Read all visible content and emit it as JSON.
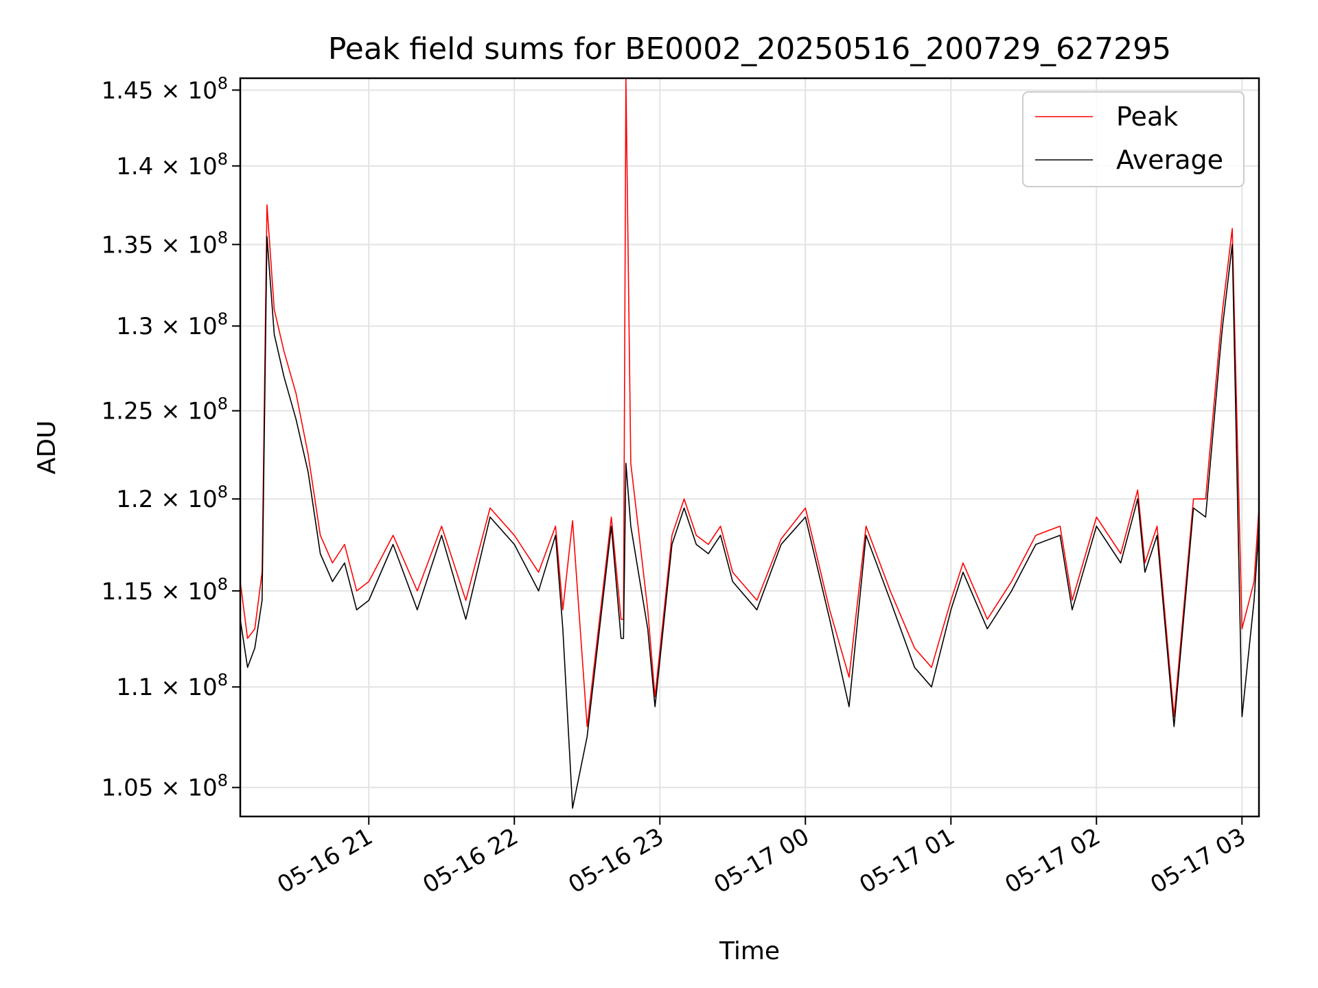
{
  "chart_data": {
    "type": "line",
    "title": "Peak field sums for BE0002_20250516_200729_627295",
    "xlabel": "Time",
    "ylabel": "ADU",
    "yscale": "log",
    "ylim": [
      103600000,
      145800000
    ],
    "xlim": [
      "2025-05-16 20:07",
      "2025-05-17 03:07"
    ],
    "grid": true,
    "legend_position": "top-right",
    "x_ticks": [
      "05-16 21",
      "05-16 22",
      "05-16 23",
      "05-17 00",
      "05-17 01",
      "05-17 02",
      "05-17 03"
    ],
    "x_tick_times": [
      "2025-05-16 21:00",
      "2025-05-16 22:00",
      "2025-05-16 23:00",
      "2025-05-17 00:00",
      "2025-05-17 01:00",
      "2025-05-17 02:00",
      "2025-05-17 03:00"
    ],
    "y_ticks": [
      {
        "value": 105000000,
        "mantissa": "1.05",
        "exponent": "8"
      },
      {
        "value": 110000000,
        "mantissa": "1.1",
        "exponent": "8"
      },
      {
        "value": 115000000,
        "mantissa": "1.15",
        "exponent": "8"
      },
      {
        "value": 120000000,
        "mantissa": "1.2",
        "exponent": "8"
      },
      {
        "value": 125000000,
        "mantissa": "1.25",
        "exponent": "8"
      },
      {
        "value": 130000000,
        "mantissa": "1.3",
        "exponent": "8"
      },
      {
        "value": 135000000,
        "mantissa": "1.35",
        "exponent": "8"
      },
      {
        "value": 140000000,
        "mantissa": "1.4",
        "exponent": "8"
      },
      {
        "value": 145000000,
        "mantissa": "1.45",
        "exponent": "8"
      }
    ],
    "series": [
      {
        "name": "Peak",
        "color": "#ff0000",
        "x": [
          "2025-05-16 20:07",
          "2025-05-16 20:10",
          "2025-05-16 20:13",
          "2025-05-16 20:16",
          "2025-05-16 20:18",
          "2025-05-16 20:21",
          "2025-05-16 20:25",
          "2025-05-16 20:30",
          "2025-05-16 20:35",
          "2025-05-16 20:40",
          "2025-05-16 20:45",
          "2025-05-16 20:50",
          "2025-05-16 20:55",
          "2025-05-16 21:00",
          "2025-05-16 21:10",
          "2025-05-16 21:20",
          "2025-05-16 21:30",
          "2025-05-16 21:40",
          "2025-05-16 21:50",
          "2025-05-16 22:00",
          "2025-05-16 22:10",
          "2025-05-16 22:17",
          "2025-05-16 22:20",
          "2025-05-16 22:24",
          "2025-05-16 22:30",
          "2025-05-16 22:40",
          "2025-05-16 22:44",
          "2025-05-16 22:45",
          "2025-05-16 22:46",
          "2025-05-16 22:48",
          "2025-05-16 22:55",
          "2025-05-16 22:58",
          "2025-05-16 23:05",
          "2025-05-16 23:10",
          "2025-05-16 23:15",
          "2025-05-16 23:20",
          "2025-05-16 23:25",
          "2025-05-16 23:30",
          "2025-05-16 23:40",
          "2025-05-16 23:50",
          "2025-05-17 00:00",
          "2025-05-17 00:10",
          "2025-05-17 00:18",
          "2025-05-17 00:25",
          "2025-05-17 00:35",
          "2025-05-17 00:45",
          "2025-05-17 00:52",
          "2025-05-17 01:00",
          "2025-05-17 01:05",
          "2025-05-17 01:15",
          "2025-05-17 01:25",
          "2025-05-17 01:35",
          "2025-05-17 01:45",
          "2025-05-17 01:50",
          "2025-05-17 02:00",
          "2025-05-17 02:10",
          "2025-05-17 02:17",
          "2025-05-17 02:20",
          "2025-05-17 02:25",
          "2025-05-17 02:32",
          "2025-05-17 02:40",
          "2025-05-17 02:45",
          "2025-05-17 02:51",
          "2025-05-17 02:52",
          "2025-05-17 02:56",
          "2025-05-17 03:00",
          "2025-05-17 03:05",
          "2025-05-17 03:07"
        ],
        "values": [
          115500000,
          112500000,
          113000000,
          116000000,
          137500000,
          131000000,
          128500000,
          126000000,
          122500000,
          118000000,
          116500000,
          117500000,
          115000000,
          115500000,
          118000000,
          115000000,
          118500000,
          114500000,
          119500000,
          118000000,
          116000000,
          118500000,
          114000000,
          118800000,
          108000000,
          119000000,
          113500000,
          113500000,
          145800000,
          122000000,
          114000000,
          109500000,
          118000000,
          120000000,
          118000000,
          117500000,
          118500000,
          116000000,
          114500000,
          117800000,
          119500000,
          114000000,
          110500000,
          118500000,
          115000000,
          112000000,
          111000000,
          114500000,
          116500000,
          113500000,
          115500000,
          118000000,
          118500000,
          114500000,
          119000000,
          117000000,
          120500000,
          116500000,
          118500000,
          108500000,
          120000000,
          120000000,
          129500000,
          131000000,
          136000000,
          113000000,
          115500000,
          119500000
        ]
      },
      {
        "name": "Average",
        "color": "#000000",
        "x": [
          "2025-05-16 20:07",
          "2025-05-16 20:10",
          "2025-05-16 20:13",
          "2025-05-16 20:16",
          "2025-05-16 20:18",
          "2025-05-16 20:21",
          "2025-05-16 20:25",
          "2025-05-16 20:30",
          "2025-05-16 20:35",
          "2025-05-16 20:40",
          "2025-05-16 20:45",
          "2025-05-16 20:50",
          "2025-05-16 20:55",
          "2025-05-16 21:00",
          "2025-05-16 21:10",
          "2025-05-16 21:20",
          "2025-05-16 21:30",
          "2025-05-16 21:40",
          "2025-05-16 21:50",
          "2025-05-16 22:00",
          "2025-05-16 22:10",
          "2025-05-16 22:17",
          "2025-05-16 22:20",
          "2025-05-16 22:24",
          "2025-05-16 22:30",
          "2025-05-16 22:40",
          "2025-05-16 22:44",
          "2025-05-16 22:45",
          "2025-05-16 22:46",
          "2025-05-16 22:48",
          "2025-05-16 22:55",
          "2025-05-16 22:58",
          "2025-05-16 23:05",
          "2025-05-16 23:10",
          "2025-05-16 23:15",
          "2025-05-16 23:20",
          "2025-05-16 23:25",
          "2025-05-16 23:30",
          "2025-05-16 23:40",
          "2025-05-16 23:50",
          "2025-05-17 00:00",
          "2025-05-17 00:10",
          "2025-05-17 00:18",
          "2025-05-17 00:25",
          "2025-05-17 00:35",
          "2025-05-17 00:45",
          "2025-05-17 00:52",
          "2025-05-17 01:00",
          "2025-05-17 01:05",
          "2025-05-17 01:15",
          "2025-05-17 01:25",
          "2025-05-17 01:35",
          "2025-05-17 01:45",
          "2025-05-17 01:50",
          "2025-05-17 02:00",
          "2025-05-17 02:10",
          "2025-05-17 02:17",
          "2025-05-17 02:20",
          "2025-05-17 02:25",
          "2025-05-17 02:32",
          "2025-05-17 02:40",
          "2025-05-17 02:45",
          "2025-05-17 02:51",
          "2025-05-17 02:52",
          "2025-05-17 02:56",
          "2025-05-17 03:00",
          "2025-05-17 03:05",
          "2025-05-17 03:07"
        ],
        "values": [
          113500000,
          111000000,
          112000000,
          114500000,
          135500000,
          129500000,
          127000000,
          124500000,
          121500000,
          117000000,
          115500000,
          116500000,
          114000000,
          114500000,
          117500000,
          114000000,
          118000000,
          113500000,
          119000000,
          117500000,
          115000000,
          118000000,
          113000000,
          104000000,
          107500000,
          118500000,
          112500000,
          112500000,
          122000000,
          118500000,
          113000000,
          109000000,
          117500000,
          119500000,
          117500000,
          117000000,
          118000000,
          115500000,
          114000000,
          117500000,
          119000000,
          113500000,
          109000000,
          118000000,
          114500000,
          111000000,
          110000000,
          114000000,
          116000000,
          113000000,
          115000000,
          117500000,
          118000000,
          114000000,
          118500000,
          116500000,
          120000000,
          116000000,
          118000000,
          108000000,
          119500000,
          119000000,
          128500000,
          130000000,
          135000000,
          108500000,
          114500000,
          118500000
        ]
      }
    ]
  }
}
